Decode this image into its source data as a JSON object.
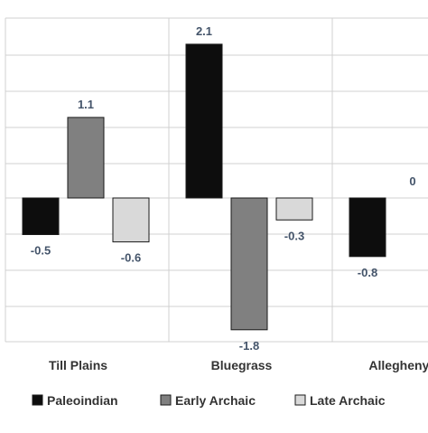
{
  "chart_data": {
    "type": "bar",
    "title": "",
    "xlabel": "",
    "ylabel": "",
    "ylim": [
      -2.0,
      2.4
    ],
    "grid": true,
    "legend": "bottom",
    "categories": [
      "Till Plains",
      "Bluegrass",
      "Allegheny P"
    ],
    "series": [
      {
        "name": "Paleoindian",
        "color": "#0d0d0d",
        "values": [
          -0.5,
          2.1,
          -0.8
        ],
        "labels": [
          "-0.5",
          "2.1",
          "-0.8"
        ]
      },
      {
        "name": "Early Archaic",
        "color": "#808080",
        "values": [
          1.1,
          -1.8,
          0
        ],
        "labels": [
          "1.1",
          "-1.8",
          "0"
        ]
      },
      {
        "name": "Late Archaic",
        "color": "#d9d9d9",
        "values": [
          -0.6,
          -0.3,
          null
        ],
        "labels": [
          "-0.6",
          "-0.3",
          ""
        ]
      }
    ]
  }
}
